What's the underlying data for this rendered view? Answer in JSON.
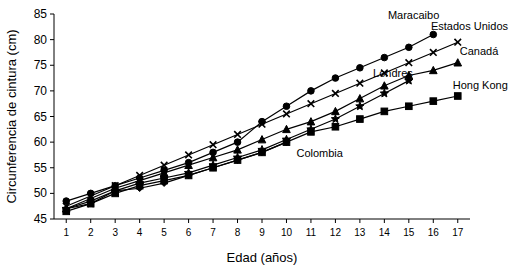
{
  "chart_data": {
    "type": "line",
    "x_label": "Edad (años)",
    "y_label": "Circunferencia de cintura (cm)",
    "x": [
      1,
      2,
      3,
      4,
      5,
      6,
      7,
      8,
      9,
      10,
      11,
      12,
      13,
      14,
      15,
      16,
      17
    ],
    "xlim": [
      0.5,
      17.5
    ],
    "xticks": [
      1,
      2,
      3,
      4,
      5,
      6,
      7,
      8,
      9,
      10,
      11,
      12,
      13,
      14,
      15,
      16,
      17
    ],
    "ylim": [
      45,
      85
    ],
    "yticks": [
      45,
      50,
      55,
      60,
      65,
      70,
      75,
      80,
      85
    ],
    "grid": false,
    "series": [
      {
        "name": "Maracaibo",
        "color": "#000000",
        "marker": "circle",
        "line_style": "solid",
        "values": [
          48.5,
          50,
          51.5,
          53,
          54.5,
          56,
          58,
          60,
          64,
          67,
          70,
          72.5,
          74.5,
          76.5,
          78.5,
          81,
          null
        ]
      },
      {
        "name": "Estados Unidos",
        "color": "#000000",
        "marker": "x",
        "line_style": "solid",
        "values": [
          47.5,
          49.5,
          51.5,
          53.5,
          55.5,
          57.5,
          59.5,
          61.5,
          63.5,
          65.5,
          67.5,
          69.5,
          71.5,
          73.5,
          75.5,
          77.5,
          79.5
        ]
      },
      {
        "name": "Canadá",
        "color": "#000000",
        "marker": "triangle",
        "line_style": "solid",
        "values": [
          47,
          49,
          51,
          52.5,
          54,
          55.5,
          57,
          58.5,
          60.5,
          62.5,
          64,
          66,
          68.5,
          71,
          73,
          74,
          75.5
        ]
      },
      {
        "name": "Londres",
        "color": "#000000",
        "marker": "star",
        "line_style": "solid",
        "values": [
          47,
          48,
          50.5,
          52,
          53,
          54,
          55.5,
          57,
          58.5,
          60.5,
          62.5,
          64.5,
          67,
          69.5,
          72,
          null,
          null
        ]
      },
      {
        "name": "Hong Kong",
        "color": "#000000",
        "marker": "square",
        "line_style": "solid",
        "values": [
          46.5,
          48,
          50,
          51.5,
          52.5,
          53.5,
          55,
          56.5,
          58,
          60,
          62,
          63,
          64.5,
          66,
          67,
          68,
          69
        ]
      },
      {
        "name": "Colombia",
        "color": "#000000",
        "marker": "diamond",
        "line_style": "solid",
        "values": [
          47,
          48.5,
          50.5,
          51,
          52,
          53.5,
          55,
          56.5,
          58,
          60,
          null,
          null,
          null,
          null,
          null,
          null,
          null
        ]
      }
    ]
  }
}
